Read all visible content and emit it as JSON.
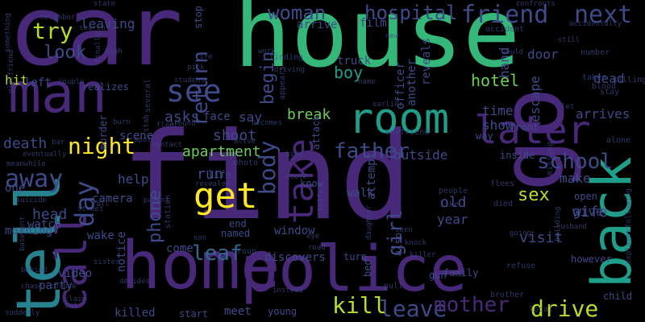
{
  "palette": {
    "deep_purple": "#440154",
    "purple": "#482878",
    "indigo": "#3e4a89",
    "blue": "#31688e",
    "teal": "#26828e",
    "cyan": "#1f9e89",
    "green": "#35b779",
    "lime": "#6ece58",
    "yellow": "#b5de2b",
    "bright_yellow": "#fde725"
  },
  "words": [
    {
      "text": "find",
      "size": 150,
      "color": "purple"
    },
    {
      "text": "house",
      "size": 118,
      "color": "green"
    },
    {
      "text": "car",
      "size": 120,
      "color": "purple"
    },
    {
      "text": "home",
      "size": 82,
      "color": "purple"
    },
    {
      "text": "police",
      "size": 78,
      "color": "purple"
    },
    {
      "text": "go",
      "size": 108,
      "color": "purple"
    },
    {
      "text": "man",
      "size": 68,
      "color": "purple"
    },
    {
      "text": "tell",
      "size": 76,
      "color": "teal"
    },
    {
      "text": "back",
      "size": 68,
      "color": "cyan"
    },
    {
      "text": "room",
      "size": 52,
      "color": "cyan"
    },
    {
      "text": "later",
      "size": 48,
      "color": "purple"
    },
    {
      "text": "call",
      "size": 52,
      "color": "purple"
    },
    {
      "text": "get",
      "size": 44,
      "color": "bright_yellow"
    },
    {
      "text": "take",
      "size": 44,
      "color": "purple"
    },
    {
      "text": "see",
      "size": 38,
      "color": "indigo"
    },
    {
      "text": "friend",
      "size": 30,
      "color": "indigo"
    },
    {
      "text": "next",
      "size": 30,
      "color": "indigo"
    },
    {
      "text": "woman",
      "size": 24,
      "color": "indigo"
    },
    {
      "text": "hospital",
      "size": 24,
      "color": "indigo"
    },
    {
      "text": "night",
      "size": 28,
      "color": "bright_yellow"
    },
    {
      "text": "try",
      "size": 28,
      "color": "yellow"
    },
    {
      "text": "father",
      "size": 26,
      "color": "indigo"
    },
    {
      "text": "school",
      "size": 26,
      "color": "indigo"
    },
    {
      "text": "day",
      "size": 32,
      "color": "indigo"
    },
    {
      "text": "away",
      "size": 30,
      "color": "indigo"
    },
    {
      "text": "leave",
      "size": 28,
      "color": "indigo"
    },
    {
      "text": "mother",
      "size": 26,
      "color": "purple"
    },
    {
      "text": "drive",
      "size": 28,
      "color": "yellow"
    },
    {
      "text": "kill",
      "size": 28,
      "color": "yellow"
    },
    {
      "text": "body",
      "size": 28,
      "color": "indigo"
    },
    {
      "text": "return",
      "size": 26,
      "color": "indigo"
    },
    {
      "text": "leaf",
      "size": 26,
      "color": "blue"
    },
    {
      "text": "begin",
      "size": 22,
      "color": "indigo"
    },
    {
      "text": "phone",
      "size": 22,
      "color": "indigo"
    },
    {
      "text": "look",
      "size": 22,
      "color": "indigo"
    },
    {
      "text": "girl",
      "size": 24,
      "color": "indigo"
    },
    {
      "text": "sex",
      "size": 22,
      "color": "yellow"
    },
    {
      "text": "hotel",
      "size": 20,
      "color": "lime"
    },
    {
      "text": "boy",
      "size": 20,
      "color": "cyan"
    },
    {
      "text": "apartment",
      "size": 18,
      "color": "lime"
    },
    {
      "text": "break",
      "size": 18,
      "color": "lime"
    },
    {
      "text": "help",
      "size": 16,
      "color": "indigo"
    },
    {
      "text": "asks",
      "size": 18,
      "color": "indigo"
    },
    {
      "text": "run",
      "size": 18,
      "color": "indigo"
    },
    {
      "text": "shoot",
      "size": 18,
      "color": "indigo"
    },
    {
      "text": "death",
      "size": 18,
      "color": "indigo"
    },
    {
      "text": "head",
      "size": 18,
      "color": "indigo"
    },
    {
      "text": "say",
      "size": 16,
      "color": "indigo"
    },
    {
      "text": "outside",
      "size": 16,
      "color": "indigo"
    },
    {
      "text": "year",
      "size": 16,
      "color": "indigo"
    },
    {
      "text": "old",
      "size": 18,
      "color": "indigo"
    },
    {
      "text": "visit",
      "size": 18,
      "color": "indigo"
    },
    {
      "text": "wife",
      "size": 18,
      "color": "indigo"
    },
    {
      "text": "give",
      "size": 16,
      "color": "indigo"
    },
    {
      "text": "make",
      "size": 16,
      "color": "indigo"
    },
    {
      "text": "arrives",
      "size": 16,
      "color": "indigo"
    },
    {
      "text": "time",
      "size": 16,
      "color": "indigo"
    },
    {
      "text": "show",
      "size": 16,
      "color": "indigo"
    },
    {
      "text": "dead",
      "size": 16,
      "color": "indigo"
    },
    {
      "text": "door",
      "size": 16,
      "color": "indigo"
    },
    {
      "text": "hand",
      "size": 16,
      "color": "indigo"
    },
    {
      "text": "escape",
      "size": 16,
      "color": "indigo"
    },
    {
      "text": "hit",
      "size": 16,
      "color": "yellow"
    },
    {
      "text": "left",
      "size": 14,
      "color": "indigo"
    },
    {
      "text": "leaving",
      "size": 16,
      "color": "indigo"
    },
    {
      "text": "truck",
      "size": 14,
      "color": "indigo"
    },
    {
      "text": "arrive",
      "size": 14,
      "color": "indigo"
    },
    {
      "text": "film",
      "size": 14,
      "color": "indigo"
    },
    {
      "text": "reveals",
      "size": 14,
      "color": "indigo"
    },
    {
      "text": "another",
      "size": 14,
      "color": "indigo"
    },
    {
      "text": "officer",
      "size": 14,
      "color": "indigo"
    },
    {
      "text": "face",
      "size": 14,
      "color": "indigo"
    },
    {
      "text": "scene",
      "size": 14,
      "color": "indigo"
    },
    {
      "text": "camera",
      "size": 14,
      "color": "indigo"
    },
    {
      "text": "watch",
      "size": 14,
      "color": "indigo"
    },
    {
      "text": "one",
      "size": 14,
      "color": "indigo"
    },
    {
      "text": "morning",
      "size": 14,
      "color": "indigo"
    },
    {
      "text": "wake",
      "size": 14,
      "color": "indigo"
    },
    {
      "text": "come",
      "size": 14,
      "color": "indigo"
    },
    {
      "text": "notice",
      "size": 14,
      "color": "indigo"
    },
    {
      "text": "party",
      "size": 14,
      "color": "indigo"
    },
    {
      "text": "video",
      "size": 14,
      "color": "indigo"
    },
    {
      "text": "killed",
      "size": 14,
      "color": "indigo"
    },
    {
      "text": "start",
      "size": 12,
      "color": "indigo"
    },
    {
      "text": "meet",
      "size": 14,
      "color": "indigo"
    },
    {
      "text": "young",
      "size": 12,
      "color": "indigo"
    },
    {
      "text": "discovers",
      "size": 14,
      "color": "indigo"
    },
    {
      "text": "window",
      "size": 14,
      "color": "indigo"
    },
    {
      "text": "end",
      "size": 12,
      "color": "indigo"
    },
    {
      "text": "named",
      "size": 12,
      "color": "indigo"
    },
    {
      "text": "life",
      "size": 12,
      "color": "indigo"
    },
    {
      "text": "walk",
      "size": 14,
      "color": "indigo"
    },
    {
      "text": "attempt",
      "size": 14,
      "color": "indigo"
    },
    {
      "text": "attack",
      "size": 12,
      "color": "indigo"
    },
    {
      "text": "turn",
      "size": 12,
      "color": "indigo"
    },
    {
      "text": "family",
      "size": 12,
      "color": "indigo"
    },
    {
      "text": "gun",
      "size": 12,
      "color": "indigo"
    },
    {
      "text": "bed",
      "size": 12,
      "color": "indigo"
    },
    {
      "text": "also",
      "size": 12,
      "color": "indigo"
    },
    {
      "text": "pull",
      "size": 10,
      "color": "indigo"
    },
    {
      "text": "open",
      "size": 12,
      "color": "indigo"
    },
    {
      "text": "however",
      "size": 12,
      "color": "indigo"
    },
    {
      "text": "child",
      "size": 12,
      "color": "indigo"
    },
    {
      "text": "refuse",
      "size": 10,
      "color": "indigo"
    },
    {
      "text": "brother",
      "size": 10,
      "color": "indigo"
    },
    {
      "text": "local",
      "size": 10,
      "color": "indigo"
    },
    {
      "text": "stop",
      "size": 12,
      "color": "indigo"
    },
    {
      "text": "photo",
      "size": 10,
      "color": "indigo"
    },
    {
      "text": "know",
      "size": 12,
      "color": "indigo"
    },
    {
      "text": "group",
      "size": 10,
      "color": "indigo"
    },
    {
      "text": "station",
      "size": 10,
      "color": "indigo"
    },
    {
      "text": "several",
      "size": 10,
      "color": "indigo"
    },
    {
      "text": "murder",
      "size": 12,
      "color": "indigo"
    },
    {
      "text": "realizes",
      "size": 12,
      "color": "indigo"
    },
    {
      "text": "finding",
      "size": 10,
      "color": "indigo"
    },
    {
      "text": "inside",
      "size": 12,
      "color": "indigo"
    },
    {
      "text": "front",
      "size": 12,
      "color": "indigo"
    },
    {
      "text": "way",
      "size": 12,
      "color": "indigo"
    },
    {
      "text": "missing",
      "size": 10,
      "color": "indigo"
    },
    {
      "text": "flees",
      "size": 10,
      "color": "indigo"
    },
    {
      "text": "died",
      "size": 10,
      "color": "indigo"
    },
    {
      "text": "people",
      "size": 10,
      "color": "indigo"
    },
    {
      "text": "like",
      "size": 10,
      "color": "indigo"
    },
    {
      "text": "boyfriend",
      "size": 10,
      "color": "indigo"
    },
    {
      "text": "alone",
      "size": 10,
      "color": "indigo"
    },
    {
      "text": "killing",
      "size": 10,
      "color": "indigo"
    },
    {
      "text": "number",
      "size": 10,
      "color": "indigo"
    },
    {
      "text": "taken",
      "size": 10,
      "color": "indigo"
    },
    {
      "text": "blood",
      "size": 10,
      "color": "indigo"
    },
    {
      "text": "stay",
      "size": 10,
      "color": "indigo"
    },
    {
      "text": "accident",
      "size": 10,
      "color": "indigo"
    },
    {
      "text": "confronts",
      "size": 9,
      "color": "indigo"
    },
    {
      "text": "accidentally",
      "size": 9,
      "color": "indigo"
    },
    {
      "text": "state",
      "size": 9,
      "color": "indigo"
    },
    {
      "text": "neighbor",
      "size": 9,
      "color": "indigo"
    },
    {
      "text": "search",
      "size": 9,
      "color": "indigo"
    },
    {
      "text": "something",
      "size": 9,
      "color": "indigo"
    },
    {
      "text": "high",
      "size": 9,
      "color": "indigo"
    },
    {
      "text": "student",
      "size": 9,
      "color": "indigo"
    },
    {
      "text": "pick",
      "size": 9,
      "color": "indigo"
    },
    {
      "text": "fire",
      "size": 9,
      "color": "indigo"
    },
    {
      "text": "work",
      "size": 9,
      "color": "indigo"
    },
    {
      "text": "driving",
      "size": 9,
      "color": "indigo"
    },
    {
      "text": "appears",
      "size": 10,
      "color": "indigo"
    },
    {
      "text": "new",
      "size": 9,
      "color": "indigo"
    },
    {
      "text": "still",
      "size": 9,
      "color": "indigo"
    },
    {
      "text": "would",
      "size": 9,
      "color": "indigo"
    },
    {
      "text": "couple",
      "size": 9,
      "color": "indigo"
    },
    {
      "text": "finally",
      "size": 9,
      "color": "indigo"
    },
    {
      "text": "girlfriend",
      "size": 9,
      "color": "indigo"
    },
    {
      "text": "burn",
      "size": 9,
      "color": "indigo"
    },
    {
      "text": "floor",
      "size": 9,
      "color": "indigo"
    },
    {
      "text": "around",
      "size": 9,
      "color": "indigo"
    },
    {
      "text": "becomes",
      "size": 9,
      "color": "indigo"
    },
    {
      "text": "alive",
      "size": 9,
      "color": "indigo"
    },
    {
      "text": "earlier",
      "size": 9,
      "color": "indigo"
    },
    {
      "text": "let",
      "size": 9,
      "color": "indigo"
    },
    {
      "text": "bar",
      "size": 9,
      "color": "indigo"
    },
    {
      "text": "eventually",
      "size": 9,
      "color": "indigo"
    },
    {
      "text": "meanwhile",
      "size": 9,
      "color": "indigo"
    },
    {
      "text": "suicide",
      "size": 9,
      "color": "indigo"
    },
    {
      "text": "fall",
      "size": 9,
      "color": "indigo"
    },
    {
      "text": "street",
      "size": 9,
      "color": "indigo"
    },
    {
      "text": "parent",
      "size": 9,
      "color": "indigo"
    },
    {
      "text": "revealed",
      "size": 9,
      "color": "indigo"
    },
    {
      "text": "son",
      "size": 9,
      "color": "indigo"
    },
    {
      "text": "eye",
      "size": 9,
      "color": "indigo"
    },
    {
      "text": "road",
      "size": 9,
      "color": "indigo"
    },
    {
      "text": "knife",
      "size": 9,
      "color": "indigo"
    },
    {
      "text": "daughter",
      "size": 9,
      "color": "indigo"
    },
    {
      "text": "seen",
      "size": 9,
      "color": "indigo"
    },
    {
      "text": "knock",
      "size": 9,
      "color": "indigo"
    },
    {
      "text": "killer",
      "size": 9,
      "color": "indigo"
    },
    {
      "text": "husband",
      "size": 9,
      "color": "indigo"
    },
    {
      "text": "following",
      "size": 9,
      "color": "indigo"
    },
    {
      "text": "explains",
      "size": 9,
      "color": "indigo"
    },
    {
      "text": "building",
      "size": 9,
      "color": "indigo"
    },
    {
      "text": "going",
      "size": 9,
      "color": "indigo"
    },
    {
      "text": "basement",
      "size": 9,
      "color": "indigo"
    },
    {
      "text": "behind",
      "size": 9,
      "color": "indigo"
    },
    {
      "text": "chase",
      "size": 9,
      "color": "indigo"
    },
    {
      "text": "corpse",
      "size": 9,
      "color": "indigo"
    },
    {
      "text": "claim",
      "size": 9,
      "color": "indigo"
    },
    {
      "text": "sister",
      "size": 9,
      "color": "indigo"
    },
    {
      "text": "decides",
      "size": 9,
      "color": "indigo"
    },
    {
      "text": "cut",
      "size": 9,
      "color": "indigo"
    },
    {
      "text": "suddenly",
      "size": 9,
      "color": "indigo"
    },
    {
      "text": "instead",
      "size": 9,
      "color": "indigo"
    },
    {
      "text": "hide",
      "size": 9,
      "color": "indigo"
    },
    {
      "text": "store",
      "size": 9,
      "color": "indigo"
    },
    {
      "text": "contact",
      "size": 9,
      "color": "indigo"
    },
    {
      "text": "spot",
      "size": 9,
      "color": "indigo"
    },
    {
      "text": "name",
      "size": 9,
      "color": "indigo"
    },
    {
      "text": "stab",
      "size": 9,
      "color": "indigo"
    }
  ]
}
